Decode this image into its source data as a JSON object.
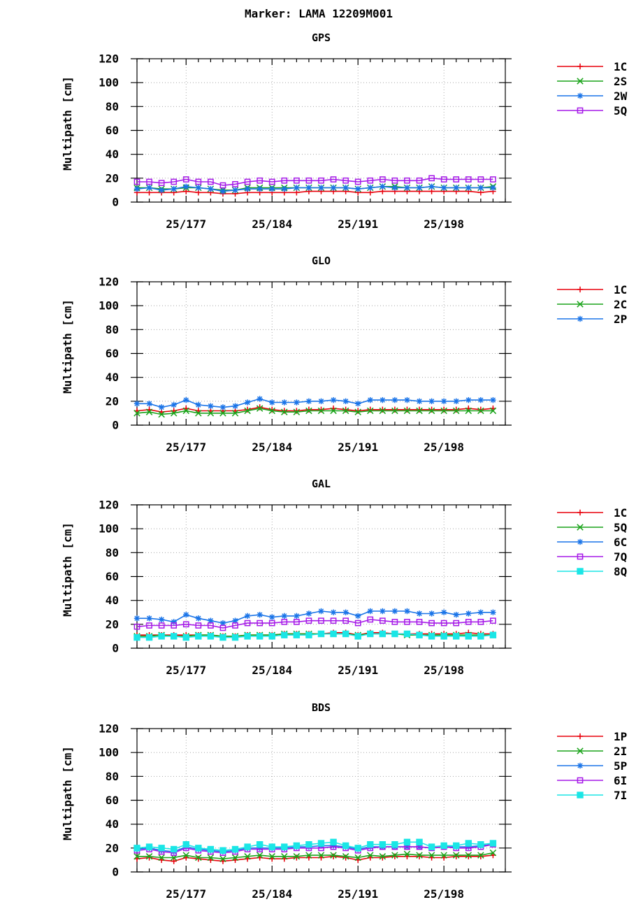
{
  "title": "Marker: LAMA 12209M001",
  "colors": {
    "red": "#e8000b",
    "green": "#1aa31a",
    "blue": "#1a74e8",
    "purple": "#a61ae8",
    "cyan": "#1ae6e6"
  },
  "chart_data": [
    {
      "type": "line",
      "title": "GPS",
      "ylabel": "Multipath [cm]",
      "ylim": [
        0,
        120
      ],
      "yticks": [
        0,
        20,
        40,
        60,
        80,
        100,
        120
      ],
      "xlim": [
        173,
        203
      ],
      "xticks": [
        {
          "value": 177,
          "label": "25/177"
        },
        {
          "value": 184,
          "label": "25/184"
        },
        {
          "value": 191,
          "label": "25/191"
        },
        {
          "value": 198,
          "label": "25/198"
        }
      ],
      "grid": true,
      "legend": "right",
      "x": [
        173,
        174,
        175,
        176,
        177,
        178,
        179,
        180,
        181,
        182,
        183,
        184,
        185,
        186,
        187,
        188,
        189,
        190,
        191,
        192,
        193,
        194,
        195,
        196,
        197,
        198,
        199,
        200,
        201,
        202
      ],
      "series": [
        {
          "name": "1C",
          "color": "red",
          "marker": "plus",
          "values": [
            8,
            8,
            8,
            8,
            9,
            8,
            8,
            7,
            7,
            8,
            8,
            8,
            8,
            8,
            9,
            9,
            9,
            9,
            8,
            8,
            9,
            9,
            9,
            9,
            9,
            9,
            9,
            9,
            8,
            9
          ]
        },
        {
          "name": "2S",
          "color": "green",
          "marker": "x",
          "values": [
            12,
            12,
            11,
            11,
            12,
            12,
            11,
            10,
            10,
            12,
            12,
            12,
            12,
            12,
            12,
            12,
            12,
            12,
            11,
            12,
            13,
            13,
            12,
            12,
            13,
            12,
            12,
            12,
            12,
            13
          ]
        },
        {
          "name": "2W",
          "color": "blue",
          "marker": "star",
          "values": [
            11,
            12,
            10,
            11,
            13,
            12,
            11,
            9,
            10,
            11,
            11,
            11,
            11,
            12,
            12,
            12,
            12,
            12,
            11,
            12,
            13,
            12,
            12,
            12,
            13,
            12,
            12,
            12,
            12,
            12
          ]
        },
        {
          "name": "5Q",
          "color": "purple",
          "marker": "square",
          "values": [
            17,
            17,
            16,
            17,
            19,
            17,
            17,
            14,
            15,
            17,
            18,
            17,
            18,
            18,
            18,
            18,
            19,
            18,
            17,
            18,
            19,
            18,
            18,
            18,
            20,
            19,
            19,
            19,
            19,
            19
          ]
        }
      ]
    },
    {
      "type": "line",
      "title": "GLO",
      "ylabel": "Multipath [cm]",
      "ylim": [
        0,
        120
      ],
      "yticks": [
        0,
        20,
        40,
        60,
        80,
        100,
        120
      ],
      "xlim": [
        173,
        203
      ],
      "xticks": [
        {
          "value": 177,
          "label": "25/177"
        },
        {
          "value": 184,
          "label": "25/184"
        },
        {
          "value": 191,
          "label": "25/191"
        },
        {
          "value": 198,
          "label": "25/198"
        }
      ],
      "grid": true,
      "legend": "right",
      "x": [
        173,
        174,
        175,
        176,
        177,
        178,
        179,
        180,
        181,
        182,
        183,
        184,
        185,
        186,
        187,
        188,
        189,
        190,
        191,
        192,
        193,
        194,
        195,
        196,
        197,
        198,
        199,
        200,
        201,
        202
      ],
      "series": [
        {
          "name": "1C",
          "color": "red",
          "marker": "plus",
          "values": [
            12,
            13,
            11,
            12,
            14,
            12,
            12,
            12,
            12,
            13,
            15,
            13,
            12,
            12,
            13,
            13,
            14,
            13,
            12,
            13,
            13,
            13,
            13,
            13,
            13,
            13,
            13,
            14,
            13,
            14
          ]
        },
        {
          "name": "2C",
          "color": "green",
          "marker": "x",
          "values": [
            10,
            11,
            9,
            10,
            12,
            10,
            10,
            10,
            10,
            12,
            14,
            12,
            11,
            11,
            12,
            12,
            12,
            12,
            11,
            12,
            12,
            12,
            12,
            12,
            12,
            12,
            12,
            12,
            12,
            12
          ]
        },
        {
          "name": "2P",
          "color": "blue",
          "marker": "star",
          "values": [
            18,
            18,
            15,
            17,
            21,
            17,
            16,
            15,
            16,
            19,
            22,
            19,
            19,
            19,
            20,
            20,
            21,
            20,
            18,
            21,
            21,
            21,
            21,
            20,
            20,
            20,
            20,
            21,
            21,
            21
          ]
        }
      ]
    },
    {
      "type": "line",
      "title": "GAL",
      "ylabel": "Multipath [cm]",
      "ylim": [
        0,
        120
      ],
      "yticks": [
        0,
        20,
        40,
        60,
        80,
        100,
        120
      ],
      "xlim": [
        173,
        203
      ],
      "xticks": [
        {
          "value": 177,
          "label": "25/177"
        },
        {
          "value": 184,
          "label": "25/184"
        },
        {
          "value": 191,
          "label": "25/191"
        },
        {
          "value": 198,
          "label": "25/198"
        }
      ],
      "grid": true,
      "legend": "right",
      "x": [
        173,
        174,
        175,
        176,
        177,
        178,
        179,
        180,
        181,
        182,
        183,
        184,
        185,
        186,
        187,
        188,
        189,
        190,
        191,
        192,
        193,
        194,
        195,
        196,
        197,
        198,
        199,
        200,
        201,
        202
      ],
      "series": [
        {
          "name": "1C",
          "color": "red",
          "marker": "plus",
          "values": [
            11,
            11,
            11,
            11,
            11,
            11,
            11,
            10,
            10,
            11,
            11,
            11,
            12,
            12,
            12,
            12,
            13,
            13,
            11,
            13,
            13,
            12,
            12,
            12,
            12,
            12,
            12,
            13,
            12,
            12
          ]
        },
        {
          "name": "5Q",
          "color": "green",
          "marker": "x",
          "values": [
            10,
            10,
            11,
            10,
            10,
            11,
            11,
            10,
            10,
            11,
            11,
            11,
            12,
            12,
            12,
            12,
            12,
            12,
            11,
            12,
            12,
            12,
            11,
            11,
            11,
            11,
            11,
            11,
            11,
            11
          ]
        },
        {
          "name": "6C",
          "color": "blue",
          "marker": "star",
          "values": [
            25,
            25,
            24,
            22,
            28,
            25,
            23,
            21,
            23,
            27,
            28,
            26,
            27,
            27,
            29,
            31,
            30,
            30,
            27,
            31,
            31,
            31,
            31,
            29,
            29,
            30,
            28,
            29,
            30,
            30
          ]
        },
        {
          "name": "7Q",
          "color": "purple",
          "marker": "square",
          "values": [
            18,
            19,
            19,
            19,
            20,
            19,
            19,
            17,
            19,
            21,
            21,
            21,
            22,
            22,
            23,
            23,
            23,
            23,
            21,
            24,
            23,
            22,
            22,
            22,
            21,
            21,
            21,
            22,
            22,
            23
          ]
        },
        {
          "name": "8Q",
          "color": "cyan",
          "marker": "filled-square",
          "values": [
            9,
            9,
            10,
            10,
            9,
            10,
            10,
            9,
            9,
            10,
            10,
            10,
            11,
            11,
            11,
            12,
            12,
            12,
            10,
            12,
            12,
            12,
            12,
            11,
            10,
            10,
            10,
            10,
            10,
            11
          ]
        }
      ]
    },
    {
      "type": "line",
      "title": "BDS",
      "ylabel": "Multipath [cm]",
      "ylim": [
        0,
        120
      ],
      "yticks": [
        0,
        20,
        40,
        60,
        80,
        100,
        120
      ],
      "xlim": [
        173,
        203
      ],
      "xticks": [
        {
          "value": 177,
          "label": "25/177"
        },
        {
          "value": 184,
          "label": "25/184"
        },
        {
          "value": 191,
          "label": "25/191"
        },
        {
          "value": 198,
          "label": "25/198"
        }
      ],
      "grid": true,
      "legend": "right",
      "x": [
        173,
        174,
        175,
        176,
        177,
        178,
        179,
        180,
        181,
        182,
        183,
        184,
        185,
        186,
        187,
        188,
        189,
        190,
        191,
        192,
        193,
        194,
        195,
        196,
        197,
        198,
        199,
        200,
        201,
        202
      ],
      "series": [
        {
          "name": "1P",
          "color": "red",
          "marker": "plus",
          "values": [
            11,
            12,
            10,
            9,
            12,
            11,
            10,
            9,
            10,
            11,
            12,
            11,
            11,
            12,
            12,
            12,
            13,
            12,
            10,
            12,
            12,
            13,
            13,
            13,
            12,
            12,
            13,
            13,
            13,
            14
          ]
        },
        {
          "name": "2I",
          "color": "green",
          "marker": "x",
          "values": [
            13,
            13,
            12,
            12,
            14,
            12,
            12,
            11,
            12,
            13,
            14,
            13,
            13,
            13,
            14,
            14,
            14,
            13,
            12,
            14,
            13,
            14,
            15,
            14,
            14,
            14,
            14,
            14,
            14,
            16
          ]
        },
        {
          "name": "5P",
          "color": "blue",
          "marker": "star",
          "values": [
            19,
            20,
            18,
            17,
            21,
            19,
            18,
            17,
            18,
            20,
            20,
            20,
            20,
            21,
            21,
            22,
            22,
            21,
            19,
            21,
            21,
            21,
            21,
            21,
            20,
            21,
            21,
            21,
            22,
            23
          ]
        },
        {
          "name": "6I",
          "color": "purple",
          "marker": "square",
          "values": [
            18,
            19,
            17,
            16,
            20,
            18,
            17,
            16,
            17,
            19,
            19,
            19,
            19,
            20,
            20,
            20,
            21,
            20,
            18,
            20,
            21,
            21,
            21,
            21,
            20,
            21,
            20,
            20,
            21,
            23
          ]
        },
        {
          "name": "7I",
          "color": "cyan",
          "marker": "filled-square",
          "values": [
            20,
            21,
            20,
            19,
            23,
            20,
            19,
            18,
            19,
            21,
            23,
            21,
            21,
            22,
            23,
            24,
            25,
            22,
            20,
            23,
            23,
            23,
            25,
            25,
            21,
            22,
            22,
            24,
            23,
            24
          ]
        }
      ]
    }
  ]
}
